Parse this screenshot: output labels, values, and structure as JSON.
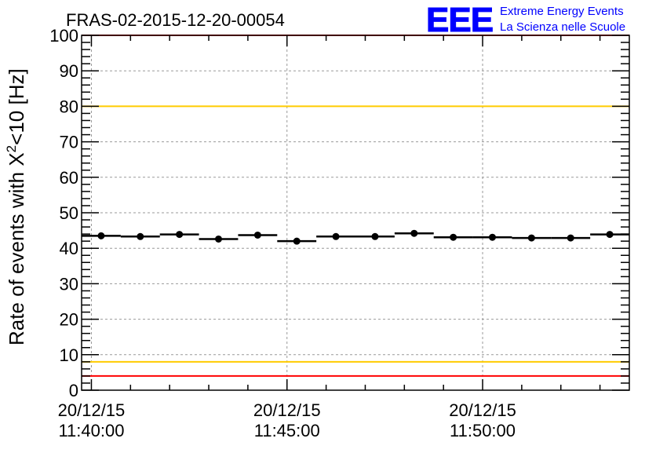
{
  "chart_data": {
    "type": "scatter",
    "title": "FRAS-02-2015-12-20-00054",
    "xlabel": "",
    "ylabel": "Rate of events with X²<10 [Hz]",
    "ylabel_main": "Rate of events with X",
    "ylabel_sup": "2",
    "ylabel_tail": "<10 [Hz]",
    "ylim": [
      0,
      100
    ],
    "yticks": [
      0,
      10,
      20,
      30,
      40,
      50,
      60,
      70,
      80,
      90,
      100
    ],
    "x_unit": "minutes after 11:40:00",
    "xlim": [
      -0.25,
      13.75
    ],
    "xticks": [
      {
        "value": 0,
        "date": "20/12/15",
        "time": "11:40:00"
      },
      {
        "value": 5,
        "date": "20/12/15",
        "time": "11:45:00"
      },
      {
        "value": 10,
        "date": "20/12/15",
        "time": "11:50:00"
      }
    ],
    "grid": true,
    "x": [
      0.25,
      1.25,
      2.25,
      3.25,
      4.25,
      5.25,
      6.25,
      7.25,
      8.25,
      9.25,
      10.25,
      11.25,
      12.25,
      13.25
    ],
    "values": [
      43.5,
      43.3,
      43.9,
      42.6,
      43.7,
      42.0,
      43.3,
      43.3,
      44.2,
      43.1,
      43.1,
      42.9,
      42.9,
      43.9
    ],
    "bin_width": 1,
    "reference_lines": [
      {
        "value": 100,
        "color": "#ff0000"
      },
      {
        "value": 4,
        "color": "#ff0000"
      },
      {
        "value": 80,
        "color": "#ffcc00"
      },
      {
        "value": 8,
        "color": "#ffcc00"
      }
    ]
  },
  "logo": {
    "text": "EEE",
    "line1": "Extreme Energy Events",
    "line2": "La Scienza nelle Scuole",
    "color": "#0000ff"
  }
}
